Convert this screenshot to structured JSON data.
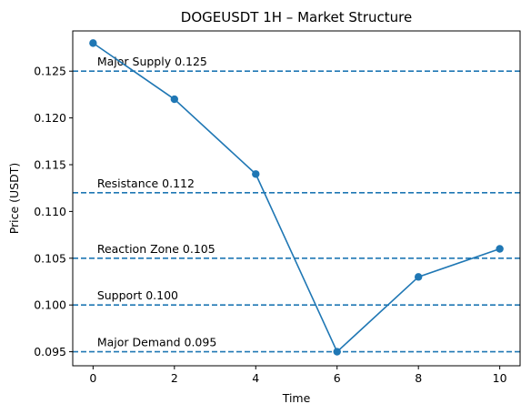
{
  "chart_data": {
    "type": "line",
    "title": "DOGEUSDT 1H – Market Structure",
    "xlabel": "Time",
    "ylabel": "Price (USDT)",
    "xlim": [
      -0.5,
      10.5
    ],
    "ylim": [
      0.0935,
      0.1293
    ],
    "x_ticks": [
      0,
      2,
      4,
      6,
      8,
      10
    ],
    "x_tick_labels": [
      "0",
      "2",
      "4",
      "6",
      "8",
      "10"
    ],
    "y_ticks": [
      0.095,
      0.1,
      0.105,
      0.11,
      0.115,
      0.12,
      0.125
    ],
    "y_tick_labels": [
      "0.095",
      "0.100",
      "0.105",
      "0.110",
      "0.115",
      "0.120",
      "0.125"
    ],
    "grid": false,
    "series": [
      {
        "x": [
          0,
          2,
          4,
          6,
          8,
          10
        ],
        "values": [
          0.128,
          0.122,
          0.114,
          0.095,
          0.103,
          0.106
        ],
        "color": "#1f77b4",
        "marker": "circle"
      }
    ],
    "levels": [
      {
        "label": "Major Supply 0.125",
        "value": 0.125
      },
      {
        "label": "Resistance 0.112",
        "value": 0.112
      },
      {
        "label": "Reaction Zone 0.105",
        "value": 0.105
      },
      {
        "label": "Support 0.100",
        "value": 0.1
      },
      {
        "label": "Major Demand 0.095",
        "value": 0.095
      }
    ],
    "level_color": "#1f77b4",
    "level_style": "dashed"
  }
}
